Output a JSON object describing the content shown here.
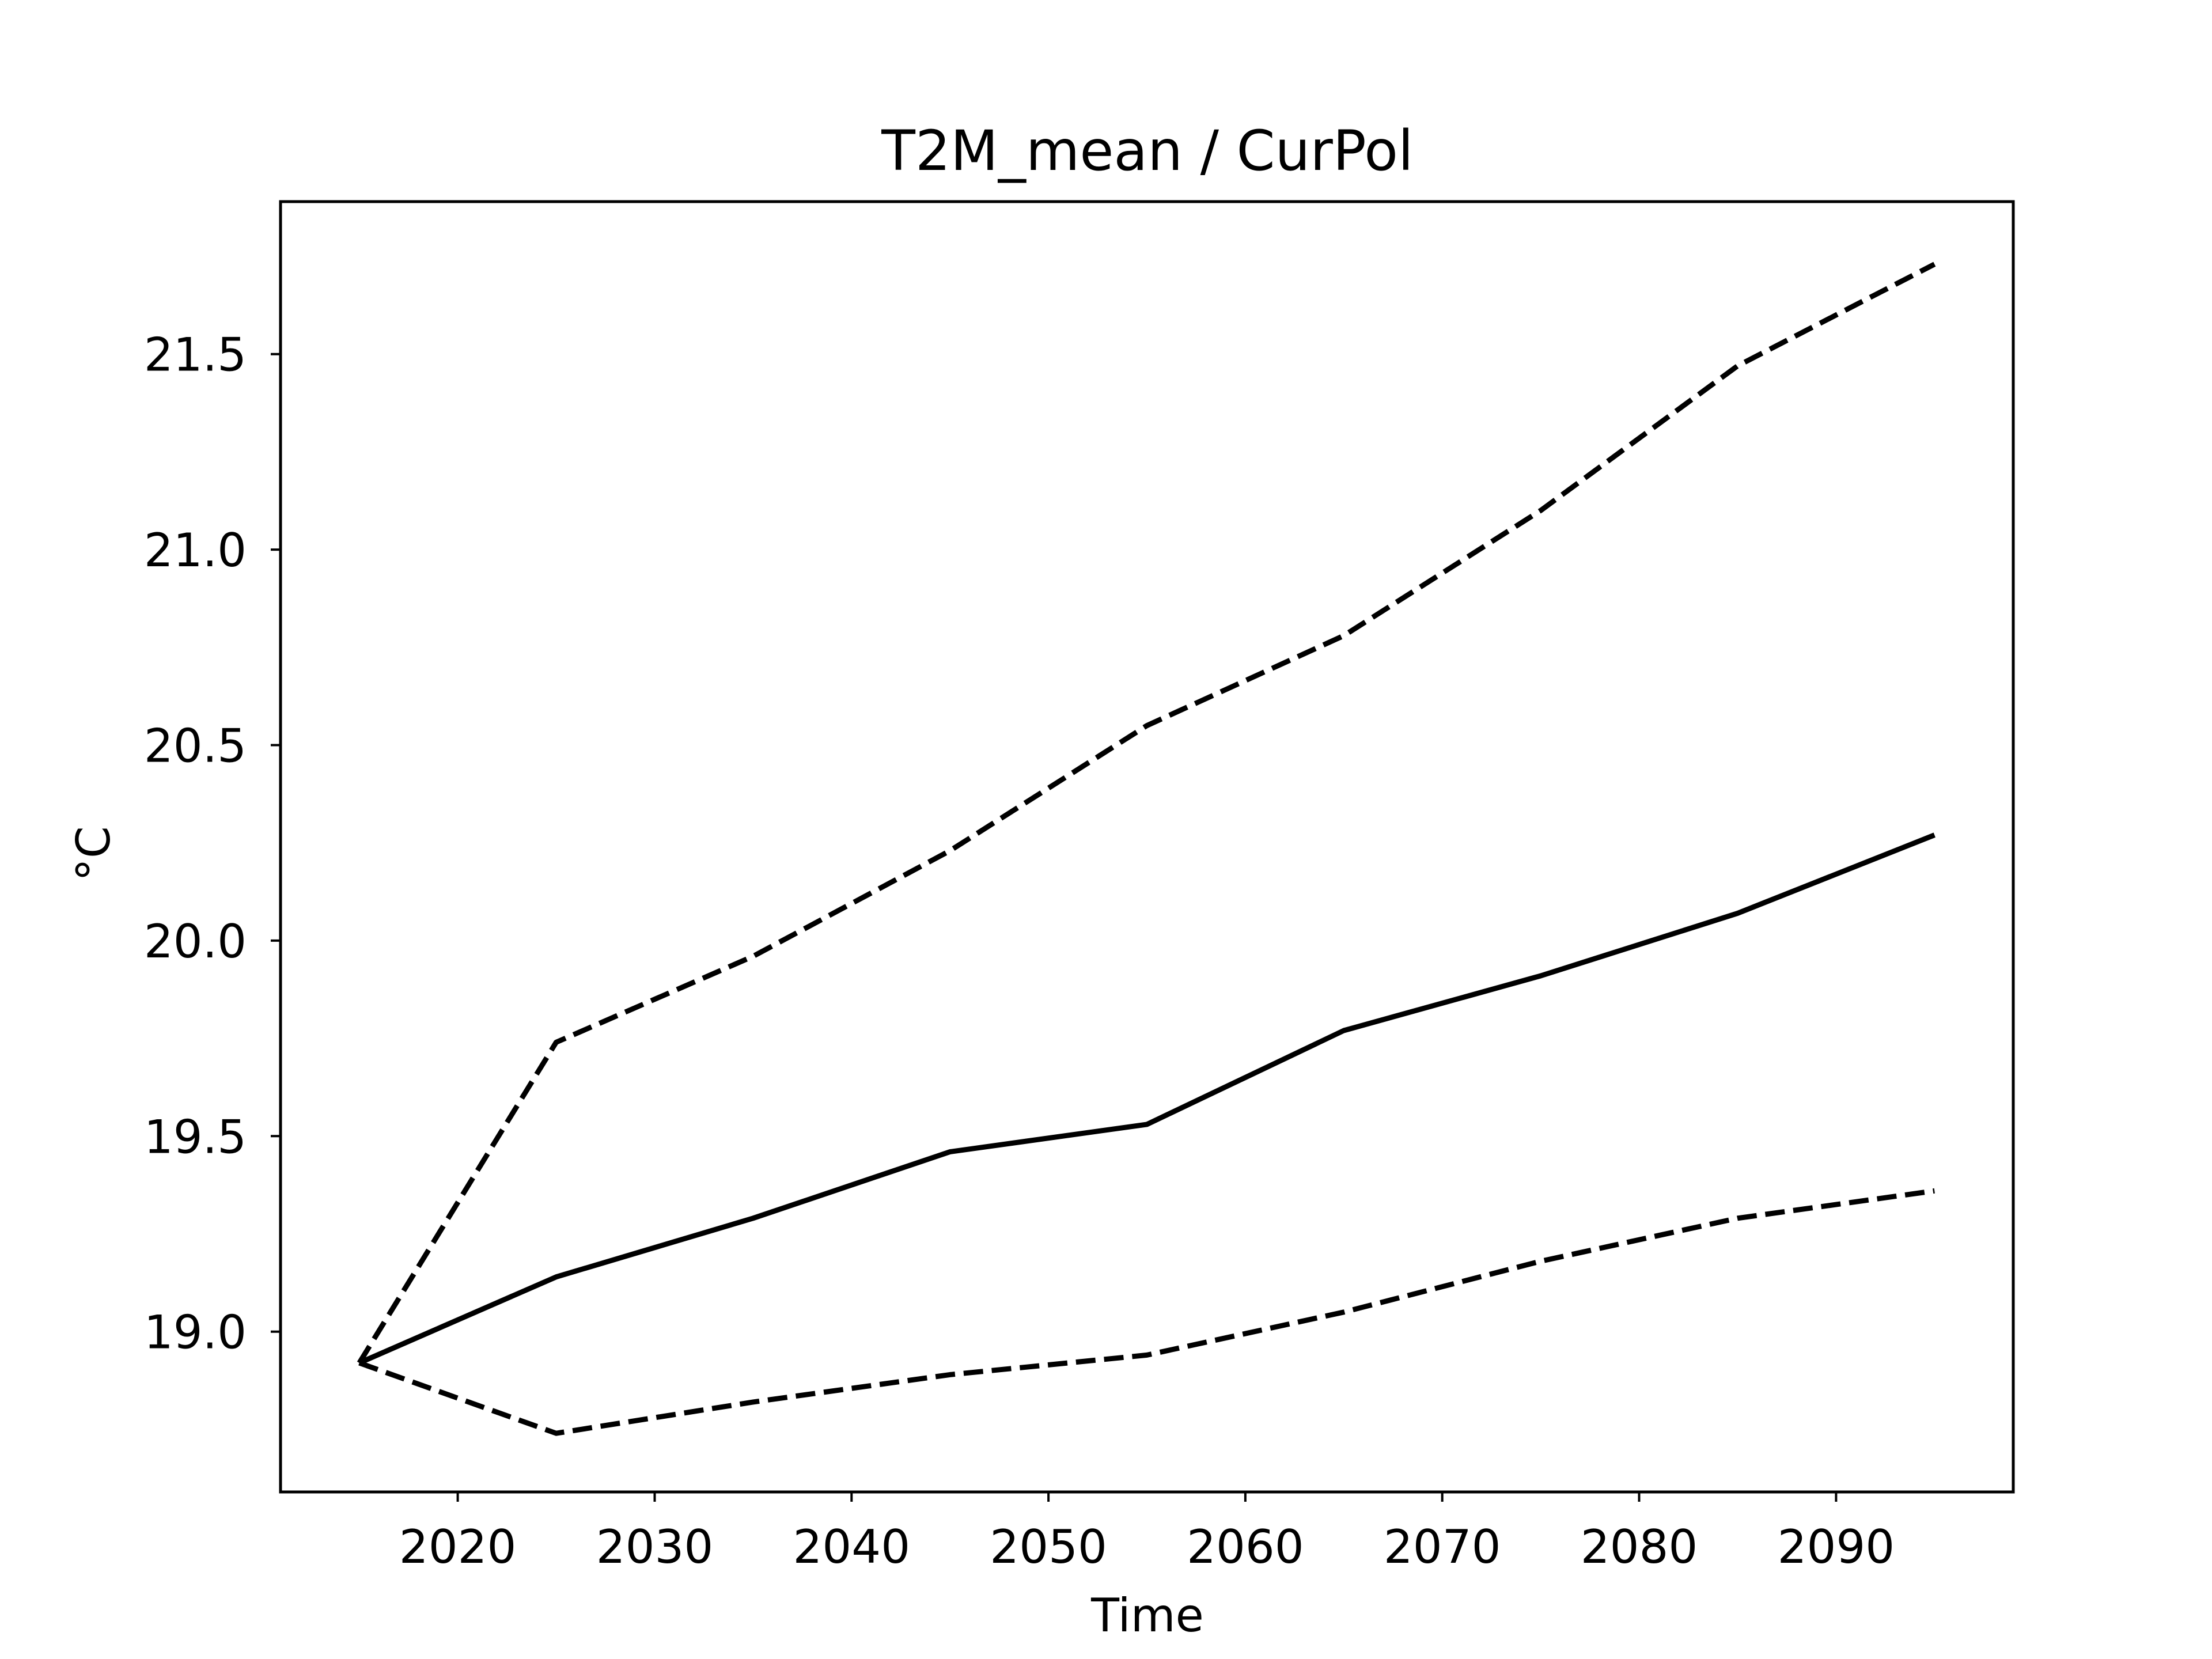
{
  "chart_data": {
    "type": "line",
    "title": "T2M_mean / CurPol",
    "xlabel": "Time",
    "ylabel": "°C",
    "x": [
      2015,
      2025,
      2035,
      2045,
      2055,
      2065,
      2075,
      2085,
      2095
    ],
    "xlim": [
      2011,
      2099
    ],
    "ylim": [
      18.59,
      21.89
    ],
    "xticks": [
      2020,
      2030,
      2040,
      2050,
      2060,
      2070,
      2080,
      2090
    ],
    "xtick_labels": [
      "2020",
      "2030",
      "2040",
      "2050",
      "2060",
      "2070",
      "2080",
      "2090"
    ],
    "yticks": [
      19.0,
      19.5,
      20.0,
      20.5,
      21.0,
      21.5
    ],
    "ytick_labels": [
      "19.0",
      "19.5",
      "20.0",
      "20.5",
      "21.0",
      "21.5"
    ],
    "grid": false,
    "legend": false,
    "series": [
      {
        "values": [
          18.92,
          19.74,
          19.96,
          20.23,
          20.55,
          20.78,
          21.1,
          21.47,
          21.73
        ],
        "style": "dashed",
        "color": "#000000"
      },
      {
        "values": [
          18.92,
          19.14,
          19.29,
          19.46,
          19.53,
          19.77,
          19.91,
          20.07,
          20.27
        ],
        "style": "solid",
        "color": "#000000"
      },
      {
        "values": [
          18.92,
          18.74,
          18.82,
          18.89,
          18.94,
          19.05,
          19.18,
          19.29,
          19.36
        ],
        "style": "dashed",
        "color": "#000000"
      }
    ]
  }
}
